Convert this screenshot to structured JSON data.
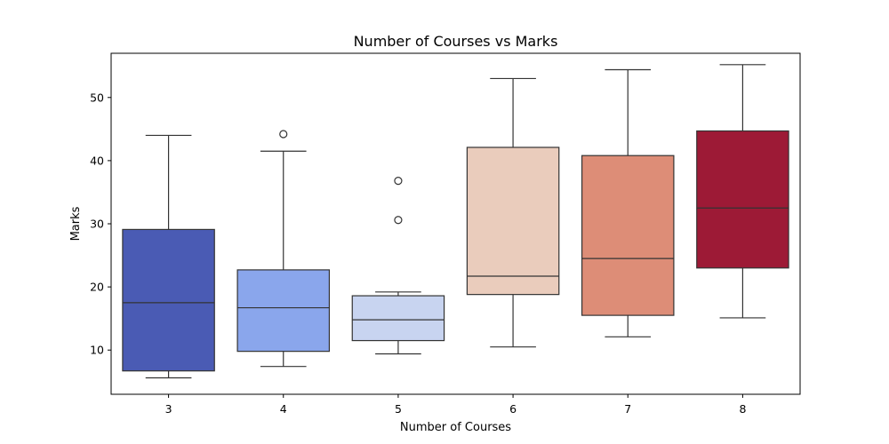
{
  "chart_data": {
    "type": "box",
    "title": "Number of Courses vs Marks",
    "xlabel": "Number of Courses",
    "ylabel": "Marks",
    "categories": [
      "3",
      "4",
      "5",
      "6",
      "7",
      "8"
    ],
    "ylim": [
      3.0,
      57.0
    ],
    "yticks": [
      10,
      20,
      30,
      40,
      50
    ],
    "grid": false,
    "legend": "none",
    "boxes": [
      {
        "category": "3",
        "whisker_low": 5.6,
        "q1": 6.7,
        "median": 17.5,
        "q3": 29.1,
        "whisker_high": 44.0,
        "outliers": [],
        "color": "#4a5bb4"
      },
      {
        "category": "4",
        "whisker_low": 7.4,
        "q1": 9.8,
        "median": 16.7,
        "q3": 22.7,
        "whisker_high": 41.5,
        "outliers": [
          44.2
        ],
        "color": "#8aa6ec"
      },
      {
        "category": "5",
        "whisker_low": 9.4,
        "q1": 11.5,
        "median": 14.8,
        "q3": 18.6,
        "whisker_high": 19.2,
        "outliers": [
          30.6,
          36.8
        ],
        "color": "#c8d4f0"
      },
      {
        "category": "6",
        "whisker_low": 10.5,
        "q1": 18.8,
        "median": 21.7,
        "q3": 42.1,
        "whisker_high": 53.0,
        "outliers": [],
        "color": "#eaccbc"
      },
      {
        "category": "7",
        "whisker_low": 12.1,
        "q1": 15.5,
        "median": 24.5,
        "q3": 40.8,
        "whisker_high": 54.4,
        "outliers": [],
        "color": "#dd8d77"
      },
      {
        "category": "8",
        "whisker_low": 15.1,
        "q1": 23.0,
        "median": 32.5,
        "q3": 44.7,
        "whisker_high": 55.2,
        "outliers": [],
        "color": "#9d1a36"
      }
    ]
  }
}
